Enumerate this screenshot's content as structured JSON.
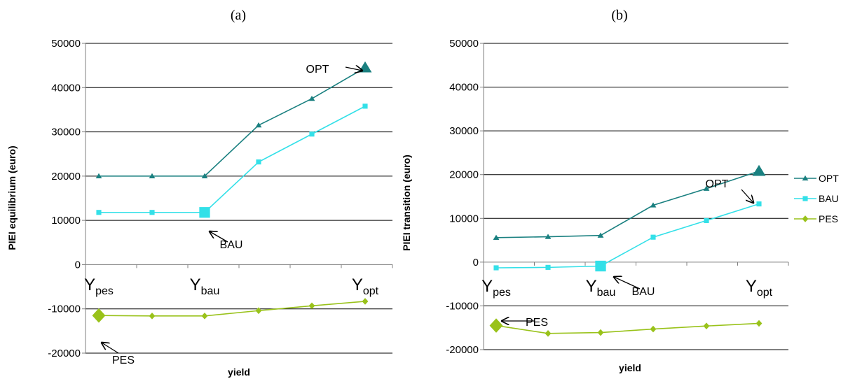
{
  "chart_data": [
    {
      "type": "line",
      "panel_label": "(a)",
      "xlabel": "yield",
      "ylabel": "PIEI equilibrium (euro)",
      "ylim": [
        -20000,
        50000
      ],
      "yticks": [
        -20000,
        -10000,
        0,
        10000,
        20000,
        30000,
        40000,
        50000
      ],
      "x": [
        1,
        2,
        3,
        4,
        5,
        6
      ],
      "category_labels": [
        {
          "x": 1,
          "main": "Y",
          "sub": "pes"
        },
        {
          "x": 3,
          "main": "Y",
          "sub": "bau"
        },
        {
          "x": 6,
          "main": "Y",
          "sub": "opt"
        }
      ],
      "series": [
        {
          "name": "OPT",
          "color": "#1a8080",
          "marker": "triangle",
          "values": [
            20000,
            20000,
            20000,
            31500,
            37500,
            44500
          ],
          "highlight_index": 5
        },
        {
          "name": "BAU",
          "color": "#33e0e8",
          "marker": "square",
          "values": [
            11800,
            11800,
            11800,
            23200,
            29500,
            35800
          ],
          "highlight_index": 2
        },
        {
          "name": "PES",
          "color": "#99c21a",
          "marker": "diamond",
          "values": [
            -11500,
            -11600,
            -11600,
            -10400,
            -9300,
            -8300
          ],
          "highlight_index": 0
        }
      ],
      "annotations": [
        {
          "text": "OPT",
          "series": "OPT",
          "point_index": 5
        },
        {
          "text": "BAU",
          "series": "BAU",
          "point_index": 2
        },
        {
          "text": "PES",
          "series": "PES",
          "point_index": 0
        }
      ]
    },
    {
      "type": "line",
      "panel_label": "(b)",
      "xlabel": "yield",
      "ylabel": "PIEI transition (euro)",
      "ylim": [
        -20000,
        50000
      ],
      "yticks": [
        -20000,
        -10000,
        0,
        10000,
        20000,
        30000,
        40000,
        50000
      ],
      "x": [
        1,
        2,
        3,
        4,
        5,
        6
      ],
      "category_labels": [
        {
          "x": 1,
          "main": "Y",
          "sub": "pes"
        },
        {
          "x": 3,
          "main": "Y",
          "sub": "bau"
        },
        {
          "x": 6,
          "main": "Y",
          "sub": "opt"
        }
      ],
      "series": [
        {
          "name": "OPT",
          "color": "#1a8080",
          "marker": "triangle",
          "values": [
            5600,
            5800,
            6100,
            13000,
            16800,
            20800
          ],
          "highlight_index": 5
        },
        {
          "name": "BAU",
          "color": "#33e0e8",
          "marker": "square",
          "values": [
            -1300,
            -1200,
            -900,
            5700,
            9500,
            13300
          ],
          "highlight_index": 2
        },
        {
          "name": "PES",
          "color": "#99c21a",
          "marker": "diamond",
          "values": [
            -14500,
            -16300,
            -16100,
            -15300,
            -14600,
            -14000
          ],
          "highlight_index": 0
        }
      ],
      "annotations": [
        {
          "text": "OPT",
          "series": "OPT",
          "point_index": 5
        },
        {
          "text": "BAU",
          "series": "BAU",
          "point_index": 2
        },
        {
          "text": "PES",
          "series": "PES",
          "point_index": 0
        }
      ]
    }
  ],
  "legend": {
    "placement": "right",
    "items": [
      {
        "name": "OPT",
        "color": "#1a8080",
        "marker": "triangle"
      },
      {
        "name": "BAU",
        "color": "#33e0e8",
        "marker": "square"
      },
      {
        "name": "PES",
        "color": "#99c21a",
        "marker": "diamond"
      }
    ]
  },
  "colors": {
    "grid": "#000000",
    "axis": "#7f7f7f",
    "text": "#000000"
  }
}
